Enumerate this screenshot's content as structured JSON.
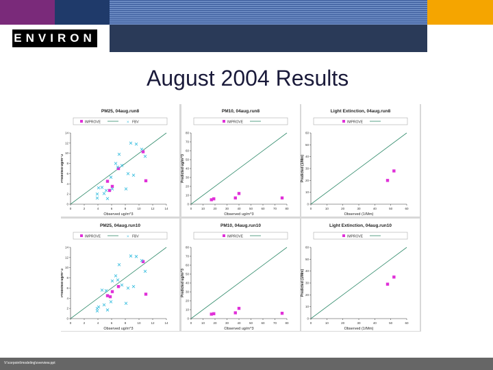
{
  "slide": {
    "title": "August 2004 Results",
    "logo_text": "ENVIRON",
    "footer_path": "V:\\corpoint\\modeling\\overview.ppt"
  },
  "colors": {
    "purple": "#7a2a7a",
    "navy": "#1f3a6a",
    "orange": "#f5a500",
    "band": "#2a3a58",
    "improve": "#e030d8",
    "fbv": "#40c0e0",
    "one_to_one": "#2f8a6a"
  },
  "legend": {
    "improve": "IMPROVE",
    "fbv": "FBV"
  },
  "chart_data": [
    {
      "type": "scatter",
      "title": "PM25, 04aug.run8",
      "xlabel": "Observed ug/m^3",
      "ylabel": "Predicted ug/m^3",
      "xlim": [
        0,
        14
      ],
      "ylim": [
        0,
        14
      ],
      "xticks": [
        0,
        2,
        4,
        6,
        8,
        10,
        12,
        14
      ],
      "yticks": [
        0,
        2,
        4,
        6,
        8,
        10,
        12,
        14
      ],
      "series": [
        {
          "name": "IMPROVE",
          "marker": "square",
          "points": [
            [
              5.4,
              4.5
            ],
            [
              7.0,
              7.0
            ],
            [
              10.6,
              10.3
            ],
            [
              11.0,
              4.6
            ],
            [
              6.1,
              3.5
            ],
            [
              5.7,
              2.7
            ]
          ]
        },
        {
          "name": "FBV",
          "marker": "x",
          "points": [
            [
              3.9,
              1.2
            ],
            [
              3.9,
              2.0
            ],
            [
              4.1,
              3.2
            ],
            [
              4.6,
              3.3
            ],
            [
              4.9,
              2.1
            ],
            [
              5.2,
              2.7
            ],
            [
              5.4,
              1.1
            ],
            [
              5.9,
              5.3
            ],
            [
              6.1,
              3.0
            ],
            [
              6.6,
              8.0
            ],
            [
              6.9,
              7.3
            ],
            [
              7.1,
              9.8
            ],
            [
              7.5,
              7.6
            ],
            [
              8.1,
              3.0
            ],
            [
              8.4,
              6.0
            ],
            [
              8.8,
              12.0
            ],
            [
              9.2,
              5.7
            ],
            [
              9.6,
              11.8
            ],
            [
              10.4,
              10.8
            ],
            [
              10.9,
              9.4
            ]
          ]
        }
      ]
    },
    {
      "type": "scatter",
      "title": "PM10, 04aug.run8",
      "xlabel": "Observed ug/m^3",
      "ylabel": "Predicted ug/m^3",
      "xlim": [
        0,
        80
      ],
      "ylim": [
        0,
        80
      ],
      "xticks": [
        0,
        10,
        20,
        30,
        40,
        50,
        60,
        70,
        80
      ],
      "yticks": [
        0,
        10,
        20,
        30,
        40,
        50,
        60,
        70,
        80
      ],
      "series": [
        {
          "name": "IMPROVE",
          "marker": "square",
          "points": [
            [
              17.0,
              5.0
            ],
            [
              19.0,
              6.0
            ],
            [
              37.0,
              7.0
            ],
            [
              40.0,
              12.0
            ],
            [
              76.0,
              7.0
            ]
          ]
        }
      ]
    },
    {
      "type": "scatter",
      "title": "Light Extinction, 04aug.run8",
      "xlabel": "Observed (1/Mm)",
      "ylabel": "Predicted (1/Mm)",
      "xlim": [
        0,
        60
      ],
      "ylim": [
        0,
        60
      ],
      "xticks": [
        0,
        10,
        20,
        30,
        40,
        50,
        60
      ],
      "yticks": [
        0,
        10,
        20,
        30,
        40,
        50,
        60
      ],
      "series": [
        {
          "name": "IMPROVE",
          "marker": "square",
          "points": [
            [
              48.0,
              20.0
            ],
            [
              52.0,
              28.0
            ]
          ]
        }
      ]
    },
    {
      "type": "scatter",
      "title": "PM25, 04aug.run10",
      "xlabel": "Observed ug/m^3",
      "ylabel": "Predicted ug/m^3",
      "xlim": [
        0,
        14
      ],
      "ylim": [
        0,
        14
      ],
      "xticks": [
        0,
        2,
        4,
        6,
        8,
        10,
        12,
        14
      ],
      "yticks": [
        0,
        2,
        4,
        6,
        8,
        10,
        12,
        14
      ],
      "series": [
        {
          "name": "IMPROVE",
          "marker": "square",
          "points": [
            [
              5.4,
              4.5
            ],
            [
              7.0,
              6.3
            ],
            [
              10.6,
              11.2
            ],
            [
              11.0,
              4.8
            ],
            [
              6.1,
              5.3
            ],
            [
              5.8,
              4.3
            ]
          ]
        },
        {
          "name": "FBV",
          "marker": "x",
          "points": [
            [
              3.9,
              2.0
            ],
            [
              3.9,
              1.5
            ],
            [
              4.1,
              2.3
            ],
            [
              4.6,
              5.6
            ],
            [
              4.9,
              2.7
            ],
            [
              5.2,
              5.5
            ],
            [
              5.4,
              1.7
            ],
            [
              5.9,
              3.3
            ],
            [
              6.1,
              7.4
            ],
            [
              6.6,
              8.4
            ],
            [
              6.9,
              7.6
            ],
            [
              7.1,
              10.6
            ],
            [
              7.5,
              6.6
            ],
            [
              8.1,
              3.0
            ],
            [
              8.4,
              6.0
            ],
            [
              8.8,
              12.3
            ],
            [
              9.2,
              6.3
            ],
            [
              9.6,
              12.2
            ],
            [
              10.4,
              11.4
            ],
            [
              10.9,
              9.3
            ]
          ]
        }
      ]
    },
    {
      "type": "scatter",
      "title": "PM10, 04aug.run10",
      "xlabel": "Observed ug/m^3",
      "ylabel": "Predicted ug/m^3",
      "xlim": [
        0,
        80
      ],
      "ylim": [
        0,
        80
      ],
      "xticks": [
        0,
        10,
        20,
        30,
        40,
        50,
        60,
        70,
        80
      ],
      "yticks": [
        0,
        10,
        20,
        30,
        40,
        50,
        60,
        70,
        80
      ],
      "series": [
        {
          "name": "IMPROVE",
          "marker": "square",
          "points": [
            [
              17.0,
              5.0
            ],
            [
              19.0,
              5.5
            ],
            [
              37.0,
              6.5
            ],
            [
              40.0,
              11.5
            ],
            [
              76.0,
              6.0
            ]
          ]
        }
      ]
    },
    {
      "type": "scatter",
      "title": "Light Extinction, 04aug.run10",
      "xlabel": "Observed (1/Mm)",
      "ylabel": "Predicted (1/Mm)",
      "xlim": [
        0,
        60
      ],
      "ylim": [
        0,
        60
      ],
      "xticks": [
        0,
        10,
        20,
        30,
        40,
        50,
        60
      ],
      "yticks": [
        0,
        10,
        20,
        30,
        40,
        50,
        60
      ],
      "series": [
        {
          "name": "IMPROVE",
          "marker": "square",
          "points": [
            [
              48.0,
              29.0
            ],
            [
              52.0,
              35.0
            ]
          ]
        }
      ]
    }
  ]
}
